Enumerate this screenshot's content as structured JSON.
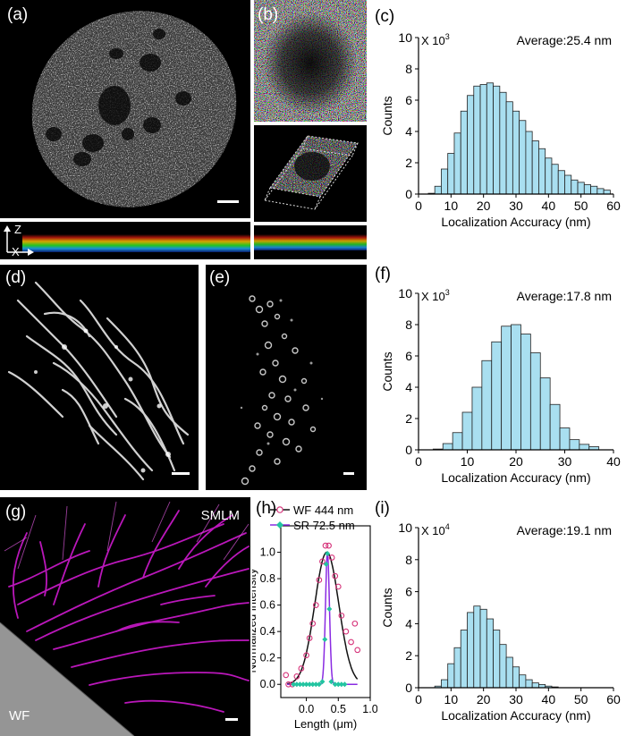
{
  "panels": {
    "a": {
      "label": "(a)",
      "axis_z": "Z",
      "axis_x": "X"
    },
    "b": {
      "label": "(b)"
    },
    "d": {
      "label": "(d)"
    },
    "e": {
      "label": "(e)"
    },
    "g": {
      "label": "(g)",
      "tag_top": "SMLM",
      "tag_bottom": "WF"
    }
  },
  "colors": {
    "bar_fill": "#a9dff0",
    "bar_stroke": "#222222",
    "magenta": "#d21bd2",
    "wf_line": "#111111",
    "sr_line": "#8a2be2",
    "wf_marker": "#d6337a",
    "sr_marker": "#22c4a0"
  },
  "chart_data": [
    {
      "id": "c",
      "type": "bar",
      "panel_label": "(c)",
      "title": "",
      "multiplier": "X 10",
      "multiplier_exp": "3",
      "annotation": "Average:25.4 nm",
      "xlabel": "Localization Accuracy (nm)",
      "ylabel": "Counts",
      "xlim": [
        0,
        60
      ],
      "ylim": [
        0,
        10
      ],
      "xticks": [
        0,
        10,
        20,
        30,
        40,
        50,
        60
      ],
      "yticks": [
        0,
        2,
        4,
        6,
        8,
        10
      ],
      "bin_width": 2,
      "bins": [
        4,
        6,
        8,
        10,
        12,
        14,
        16,
        18,
        20,
        22,
        24,
        26,
        28,
        30,
        32,
        34,
        36,
        38,
        40,
        42,
        44,
        46,
        48,
        50,
        52,
        54,
        56,
        58
      ],
      "values": [
        0.05,
        0.5,
        1.6,
        2.6,
        3.9,
        5.3,
        6.3,
        6.9,
        7.0,
        7.1,
        6.9,
        6.5,
        5.9,
        5.3,
        4.7,
        4.0,
        3.4,
        2.9,
        2.3,
        1.9,
        1.5,
        1.2,
        0.9,
        0.75,
        0.6,
        0.5,
        0.35,
        0.25
      ]
    },
    {
      "id": "f",
      "type": "bar",
      "panel_label": "(f)",
      "title": "",
      "multiplier": "X 10",
      "multiplier_exp": "3",
      "annotation": "Average:17.8 nm",
      "xlabel": "Localization Accuracy (nm)",
      "ylabel": "Counts",
      "xlim": [
        0,
        40
      ],
      "ylim": [
        0,
        10
      ],
      "xticks": [
        0,
        10,
        20,
        30,
        40
      ],
      "yticks": [
        0,
        2,
        4,
        6,
        8,
        10
      ],
      "bin_width": 2,
      "bins": [
        4,
        6,
        8,
        10,
        12,
        14,
        16,
        18,
        20,
        22,
        24,
        26,
        28,
        30,
        32,
        34,
        36
      ],
      "values": [
        0.05,
        0.4,
        1.1,
        2.4,
        4.0,
        5.7,
        6.9,
        7.9,
        8.0,
        7.4,
        6.2,
        4.6,
        2.9,
        1.4,
        0.65,
        0.35,
        0.2
      ]
    },
    {
      "id": "h",
      "type": "line",
      "panel_label": "(h)",
      "xlabel": "Length (μm)",
      "ylabel": "Normalized intensity",
      "xlim": [
        -0.4,
        1.0
      ],
      "ylim": [
        -0.1,
        1.2
      ],
      "xticks": [
        0,
        0.5,
        1.0
      ],
      "xtick_labels": [
        "0.0",
        "0.5",
        "1.0"
      ],
      "yticks": [
        0,
        0.2,
        0.4,
        0.6,
        0.8,
        1.0
      ],
      "ytick_labels": [
        "0.0",
        "0.2",
        "0.4",
        "0.6",
        "0.8",
        "1.0"
      ],
      "series": [
        {
          "name": "WF 444 nm",
          "center": 0.32,
          "fwhm": 0.444,
          "points": [
            [
              -0.32,
              0.07
            ],
            [
              -0.28,
              0.0
            ],
            [
              -0.22,
              0.0
            ],
            [
              -0.15,
              0.06
            ],
            [
              -0.08,
              0.12
            ],
            [
              0.0,
              0.22
            ],
            [
              0.05,
              0.35
            ],
            [
              0.1,
              0.46
            ],
            [
              0.15,
              0.6
            ],
            [
              0.2,
              0.79
            ],
            [
              0.25,
              0.93
            ],
            [
              0.3,
              1.05
            ],
            [
              0.35,
              1.05
            ],
            [
              0.4,
              0.96
            ],
            [
              0.45,
              0.82
            ],
            [
              0.5,
              0.74
            ],
            [
              0.55,
              0.52
            ],
            [
              0.62,
              0.4
            ],
            [
              0.7,
              0.32
            ],
            [
              0.76,
              0.46
            ],
            [
              0.8,
              0.26
            ]
          ]
        },
        {
          "name": "SR 72.5 nm",
          "center": 0.33,
          "fwhm": 0.0725,
          "points": [
            [
              -0.2,
              0.0
            ],
            [
              -0.15,
              0.0
            ],
            [
              -0.1,
              0.0
            ],
            [
              -0.05,
              0.0
            ],
            [
              0.0,
              0.0
            ],
            [
              0.05,
              0.0
            ],
            [
              0.1,
              0.0
            ],
            [
              0.15,
              0.0
            ],
            [
              0.2,
              0.0
            ],
            [
              0.25,
              0.02
            ],
            [
              0.29,
              0.34
            ],
            [
              0.31,
              0.91
            ],
            [
              0.33,
              0.99
            ],
            [
              0.36,
              0.57
            ],
            [
              0.39,
              0.02
            ],
            [
              0.45,
              0.0
            ],
            [
              0.5,
              0.0
            ],
            [
              0.55,
              0.0
            ],
            [
              0.6,
              0.0
            ]
          ]
        }
      ]
    },
    {
      "id": "i",
      "type": "bar",
      "panel_label": "(i)",
      "title": "",
      "multiplier": "X 10",
      "multiplier_exp": "4",
      "annotation": "Average:19.1 nm",
      "xlabel": "Localization Accuracy (nm)",
      "ylabel": "Counts",
      "xlim": [
        0,
        60
      ],
      "ylim": [
        0,
        10
      ],
      "xticks": [
        0,
        10,
        20,
        30,
        40,
        50,
        60
      ],
      "yticks": [
        0,
        2,
        4,
        6,
        8,
        10
      ],
      "bin_width": 2,
      "bins": [
        6,
        8,
        10,
        12,
        14,
        16,
        18,
        20,
        22,
        24,
        26,
        28,
        30,
        32,
        34,
        36,
        38,
        40,
        42
      ],
      "values": [
        0.1,
        0.5,
        1.5,
        2.5,
        3.6,
        4.7,
        5.1,
        4.9,
        4.3,
        3.6,
        2.7,
        1.9,
        1.3,
        0.8,
        0.5,
        0.3,
        0.2,
        0.1,
        0.05
      ]
    }
  ]
}
